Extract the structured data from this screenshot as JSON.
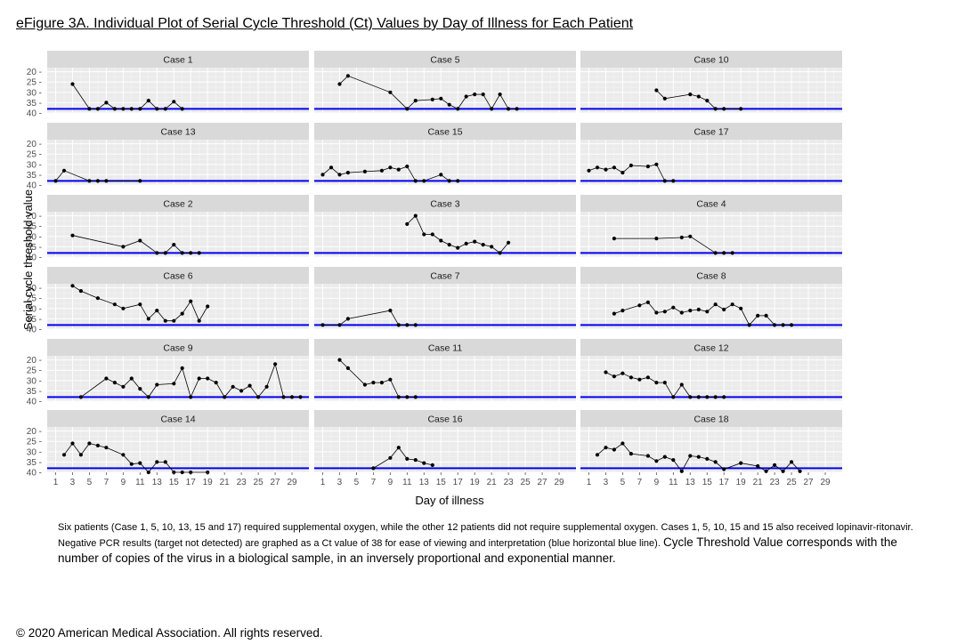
{
  "title": "eFigure 3A. Individual Plot of Serial Cycle Threshold (Ct) Values by Day of Illness for Each Patient",
  "chart_data": {
    "type": "line",
    "layout": "faceted 6x3 grid",
    "xlabel": "Day of illness",
    "ylabel": "Serial cycle threshold value",
    "xlim": [
      0,
      31
    ],
    "ylim": [
      18,
      40
    ],
    "y_reversed": true,
    "x_ticks": [
      1,
      3,
      5,
      7,
      9,
      11,
      13,
      15,
      17,
      19,
      21,
      23,
      25,
      27,
      29
    ],
    "y_ticks": [
      20,
      25,
      30,
      35,
      40
    ],
    "reference_line": {
      "y": 38,
      "color": "#0000ee",
      "label": "PCR negative (target not detected) graphed as Ct 38"
    },
    "panels": [
      {
        "name": "Case 1",
        "x": [
          3,
          5,
          6,
          7,
          8,
          9,
          10,
          11,
          12,
          13,
          14,
          15,
          16
        ],
        "y": [
          26,
          38,
          38,
          35,
          38,
          38,
          38,
          38,
          34,
          38,
          38,
          34.5,
          38
        ]
      },
      {
        "name": "Case 5",
        "x": [
          3,
          4,
          9,
          11,
          12,
          14,
          15,
          16,
          17,
          18,
          19,
          20,
          21,
          22,
          23,
          24
        ],
        "y": [
          26,
          22,
          30,
          38,
          34,
          33.5,
          33,
          36,
          38,
          32,
          31,
          31,
          38,
          31,
          38,
          38
        ]
      },
      {
        "name": "Case 10",
        "x": [
          9,
          10,
          13,
          14,
          15,
          16,
          17,
          19
        ],
        "y": [
          29,
          33,
          31,
          32,
          34,
          38,
          38,
          38
        ]
      },
      {
        "name": "Case 13",
        "x": [
          1,
          2,
          5,
          6,
          7,
          11
        ],
        "y": [
          38,
          33,
          38,
          38,
          38,
          38
        ]
      },
      {
        "name": "Case 15",
        "x": [
          1,
          2,
          3,
          4,
          6,
          8,
          9,
          10,
          11,
          12,
          13,
          15,
          16,
          17
        ],
        "y": [
          35,
          31.5,
          35,
          34,
          33.5,
          33,
          31.5,
          32.5,
          31,
          38,
          38,
          35,
          38,
          38
        ]
      },
      {
        "name": "Case 17",
        "x": [
          1,
          2,
          3,
          4,
          5,
          6,
          8,
          9,
          10,
          11
        ],
        "y": [
          33,
          31.5,
          32.5,
          31.5,
          34,
          30.5,
          31,
          30,
          38,
          38
        ]
      },
      {
        "name": "Case 2",
        "x": [
          3,
          9,
          11,
          13,
          14,
          15,
          16,
          17,
          18
        ],
        "y": [
          29.5,
          35,
          32,
          38,
          38,
          34,
          38,
          38,
          38
        ]
      },
      {
        "name": "Case 3",
        "x": [
          11,
          12,
          13,
          14,
          15,
          16,
          17,
          18,
          19,
          20,
          21,
          22,
          23
        ],
        "y": [
          24,
          20,
          29,
          29,
          32,
          34,
          35.5,
          33.5,
          32.5,
          34,
          35,
          38,
          33
        ]
      },
      {
        "name": "Case 4",
        "x": [
          4,
          9,
          12,
          13,
          16,
          17,
          18
        ],
        "y": [
          31,
          31,
          30.5,
          30,
          38,
          38,
          38
        ]
      },
      {
        "name": "Case 6",
        "x": [
          3,
          4,
          6,
          8,
          9,
          11,
          12,
          13,
          14,
          15,
          16,
          17,
          18,
          19
        ],
        "y": [
          19,
          21.5,
          25,
          28,
          30,
          28,
          35,
          31,
          36,
          36,
          32.5,
          26.5,
          36,
          29
        ]
      },
      {
        "name": "Case 7",
        "x": [
          1,
          3,
          4,
          9,
          10,
          11,
          12
        ],
        "y": [
          38,
          38,
          35,
          31,
          38,
          38,
          38
        ]
      },
      {
        "name": "Case 8",
        "x": [
          4,
          5,
          7,
          8,
          9,
          10,
          11,
          12,
          13,
          14,
          15,
          16,
          17,
          18,
          19,
          20,
          21,
          22,
          23,
          24,
          25
        ],
        "y": [
          32.5,
          31,
          28.5,
          27,
          32,
          31.5,
          29.5,
          32,
          31,
          30.5,
          31.5,
          28,
          30.5,
          28,
          30,
          38,
          33.5,
          33.5,
          38,
          38,
          38
        ]
      },
      {
        "name": "Case 9",
        "x": [
          4,
          7,
          8,
          9,
          10,
          11,
          12,
          13,
          15,
          16,
          17,
          18,
          19,
          20,
          21,
          22,
          23,
          24,
          25,
          26,
          27,
          28,
          29,
          30
        ],
        "y": [
          38,
          29,
          31,
          33,
          29,
          34,
          38,
          32,
          31.5,
          24,
          38,
          29,
          29,
          31,
          38,
          33,
          35,
          32.5,
          38,
          33,
          22,
          38,
          38,
          38
        ]
      },
      {
        "name": "Case 11",
        "x": [
          3,
          4,
          6,
          7,
          8,
          9,
          10,
          11,
          12
        ],
        "y": [
          20,
          24,
          32,
          31,
          31,
          29.5,
          38,
          38,
          38
        ]
      },
      {
        "name": "Case 12",
        "x": [
          3,
          4,
          5,
          6,
          7,
          8,
          9,
          10,
          11,
          12,
          13,
          14,
          15,
          16,
          17
        ],
        "y": [
          26,
          28,
          26.5,
          28.5,
          29.5,
          28.5,
          31,
          31,
          38,
          32,
          38,
          38,
          38,
          38,
          38
        ]
      },
      {
        "name": "Case 14",
        "x": [
          2,
          3,
          4,
          5,
          6,
          7,
          9,
          10,
          11,
          12,
          13,
          14,
          15,
          16,
          17,
          19
        ],
        "y": [
          31.5,
          26,
          31.5,
          26,
          27,
          28,
          31.5,
          36,
          35.5,
          40,
          35,
          35,
          40,
          40,
          40,
          40
        ]
      },
      {
        "name": "Case 16",
        "x": [
          7,
          9,
          10,
          11,
          12,
          13,
          14
        ],
        "y": [
          38,
          33,
          28,
          33.5,
          34,
          35.5,
          36.5
        ]
      },
      {
        "name": "Case 18",
        "x": [
          2,
          3,
          4,
          5,
          6,
          8,
          9,
          10,
          11,
          12,
          13,
          14,
          15,
          16,
          17,
          19,
          21,
          22,
          23,
          24,
          25,
          26
        ],
        "y": [
          31.5,
          28,
          29,
          26,
          31,
          32,
          34.5,
          32.5,
          34,
          39.5,
          32,
          32.5,
          33.5,
          35,
          38.5,
          35.5,
          37,
          39.5,
          36.5,
          39.5,
          35,
          39.5
        ]
      }
    ]
  },
  "caption": {
    "small": "Six patients (Case 1, 5, 10, 13, 15 and 17) required supplemental oxygen, while the other 12 patients did not require supplemental oxygen. Cases 1, 5, 10, 15 and 15 also received lopinavir-ritonavir. Negative PCR results (target not detected) are graphed as a Ct value of 38 for ease of viewing and interpretation (blue horizontal blue line).",
    "large": "Cycle Threshold Value corresponds with the number of copies of the virus in a biological sample, in an inversely proportional and exponential manner."
  },
  "copyright": "© 2020 American Medical Association. All rights reserved.",
  "colors": {
    "panel_bg": "#ebebeb",
    "strip_bg": "#d9d9d9",
    "grid_major": "#ffffff",
    "reference_line": "#0000ee",
    "data": "#000000"
  }
}
